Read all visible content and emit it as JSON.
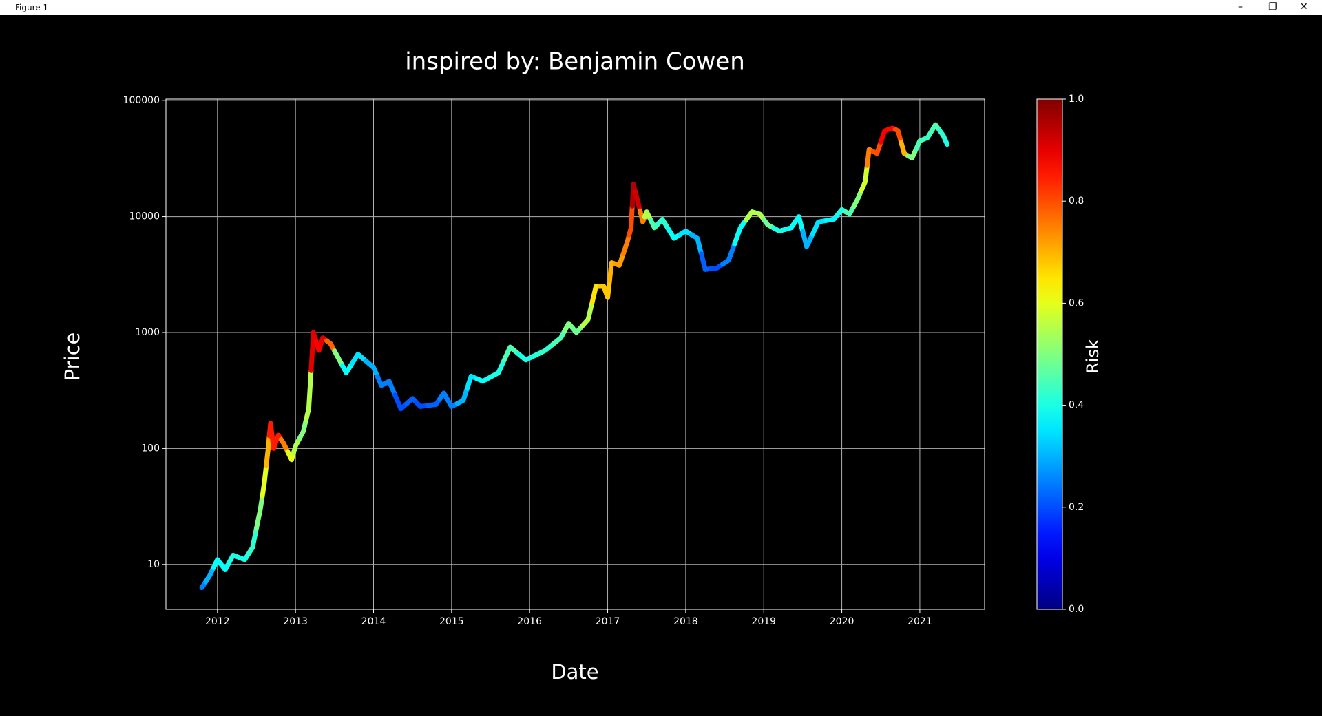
{
  "window": {
    "title": "Figure 1"
  },
  "chart_data": {
    "type": "line",
    "title": "inspired by: Benjamin Cowen",
    "x_label": "Date",
    "y_label": "Price",
    "log_y": true,
    "grid": true,
    "xlim": [
      2011.34,
      2021.83
    ],
    "xticks": [
      2012,
      2013,
      2014,
      2015,
      2016,
      2017,
      2018,
      2019,
      2020,
      2021
    ],
    "ylim": [
      4.1,
      103000
    ],
    "yticks": [
      10,
      100,
      1000,
      10000,
      100000
    ],
    "colormap": "jet",
    "colorbar": {
      "label": "Risk",
      "lim": [
        0,
        1
      ],
      "ticks": [
        {
          "value": 0,
          "label": "0.0"
        },
        {
          "value": 0.2,
          "label": "0.2"
        },
        {
          "value": 0.4,
          "label": "0.4"
        },
        {
          "value": 0.6,
          "label": "0.6"
        },
        {
          "value": 0.8,
          "label": "0.8"
        },
        {
          "value": 1,
          "label": "1.0"
        }
      ]
    },
    "series": [
      {
        "x": [
          2011.8,
          2011.9,
          2012.0,
          2012.1,
          2012.2,
          2012.35,
          2012.45,
          2012.55,
          2012.6,
          2012.65,
          2012.68,
          2012.72,
          2012.78,
          2012.85,
          2012.95,
          2013.0,
          2013.1,
          2013.17,
          2013.23,
          2013.3,
          2013.35,
          2013.45,
          2013.55,
          2013.65,
          2013.8,
          2014.0,
          2014.1,
          2014.2,
          2014.35,
          2014.5,
          2014.6,
          2014.8,
          2014.9,
          2015.0,
          2015.15,
          2015.25,
          2015.4,
          2015.6,
          2015.75,
          2015.95,
          2016.2,
          2016.4,
          2016.5,
          2016.6,
          2016.75,
          2016.85,
          2016.95,
          2017.0,
          2017.05,
          2017.15,
          2017.25,
          2017.3,
          2017.33,
          2017.38,
          2017.45,
          2017.5,
          2017.6,
          2017.7,
          2017.85,
          2018.0,
          2018.15,
          2018.25,
          2018.4,
          2018.55,
          2018.7,
          2018.85,
          2018.95,
          2019.05,
          2019.2,
          2019.35,
          2019.45,
          2019.55,
          2019.7,
          2019.9,
          2020.0,
          2020.1,
          2020.2,
          2020.3,
          2020.35,
          2020.45,
          2020.55,
          2020.65,
          2020.72,
          2020.8,
          2020.9,
          2021.0,
          2021.1,
          2021.2,
          2021.3,
          2021.35
        ],
        "values": [
          6.3,
          8,
          11,
          9,
          12,
          11,
          14,
          30,
          50,
          100,
          165,
          100,
          130,
          110,
          80,
          105,
          140,
          220,
          1000,
          700,
          900,
          800,
          600,
          450,
          650,
          500,
          350,
          380,
          220,
          270,
          230,
          240,
          300,
          230,
          260,
          420,
          380,
          450,
          750,
          580,
          700,
          900,
          1200,
          1000,
          1300,
          2500,
          2500,
          2000,
          4000,
          3800,
          6000,
          8000,
          19000,
          14000,
          9000,
          11000,
          8000,
          9500,
          6500,
          7500,
          6500,
          3500,
          3600,
          4200,
          8000,
          11000,
          10500,
          8500,
          7500,
          8000,
          10000,
          5500,
          9000,
          9500,
          11500,
          10500,
          14000,
          20000,
          38000,
          35000,
          55000,
          58000,
          55000,
          35000,
          32000,
          45000,
          48000,
          62000,
          50000,
          42000
        ],
        "risk": [
          0.25,
          0.3,
          0.38,
          0.38,
          0.4,
          0.4,
          0.42,
          0.5,
          0.6,
          0.7,
          0.85,
          0.85,
          0.85,
          0.75,
          0.6,
          0.55,
          0.5,
          0.55,
          0.9,
          0.88,
          0.9,
          0.78,
          0.5,
          0.38,
          0.35,
          0.3,
          0.25,
          0.25,
          0.2,
          0.22,
          0.2,
          0.22,
          0.25,
          0.25,
          0.3,
          0.35,
          0.38,
          0.4,
          0.45,
          0.4,
          0.42,
          0.45,
          0.5,
          0.48,
          0.55,
          0.65,
          0.68,
          0.68,
          0.7,
          0.72,
          0.75,
          0.8,
          0.95,
          0.92,
          0.75,
          0.55,
          0.45,
          0.42,
          0.38,
          0.35,
          0.3,
          0.22,
          0.2,
          0.25,
          0.38,
          0.55,
          0.55,
          0.48,
          0.4,
          0.38,
          0.38,
          0.3,
          0.35,
          0.37,
          0.4,
          0.45,
          0.5,
          0.58,
          0.75,
          0.8,
          0.88,
          0.87,
          0.8,
          0.7,
          0.5,
          0.45,
          0.43,
          0.45,
          0.42,
          0.4
        ]
      }
    ]
  }
}
